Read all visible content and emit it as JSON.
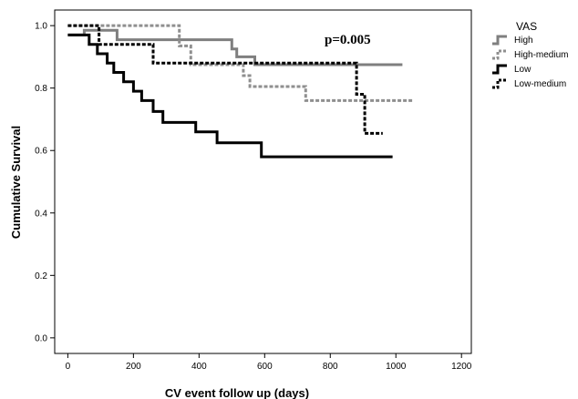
{
  "chart_data": {
    "type": "line",
    "step": true,
    "xlabel": "CV event follow up (days)",
    "ylabel": "Cumulative Survival",
    "xlim": [
      -40,
      1230
    ],
    "ylim": [
      -0.05,
      1.05
    ],
    "xticks": [
      0,
      200,
      400,
      600,
      800,
      1000,
      1200
    ],
    "yticks": [
      0.0,
      0.2,
      0.4,
      0.6,
      0.8,
      1.0
    ],
    "xtick_labels": [
      "0",
      "200",
      "400",
      "600",
      "800",
      "1000",
      "1200"
    ],
    "ytick_labels": [
      "0.0",
      "0.2",
      "0.4",
      "0.6",
      "0.8",
      "1.0"
    ],
    "annotation": "p=0.005",
    "legend": {
      "title": "VAS",
      "placement": "right"
    },
    "series": [
      {
        "name": "High",
        "color": "#7f7f7f",
        "style": "solid",
        "points": [
          [
            0,
            0.97
          ],
          [
            50,
            0.97
          ],
          [
            50,
            0.985
          ],
          [
            150,
            0.985
          ],
          [
            150,
            0.955
          ],
          [
            500,
            0.955
          ],
          [
            500,
            0.925
          ],
          [
            515,
            0.925
          ],
          [
            515,
            0.9
          ],
          [
            570,
            0.9
          ],
          [
            570,
            0.875
          ],
          [
            1020,
            0.875
          ]
        ]
      },
      {
        "name": "High-medium",
        "color": "#8f8f8f",
        "style": "dotted",
        "points": [
          [
            0,
            1.0
          ],
          [
            340,
            1.0
          ],
          [
            340,
            0.935
          ],
          [
            375,
            0.935
          ],
          [
            375,
            0.875
          ],
          [
            535,
            0.875
          ],
          [
            535,
            0.84
          ],
          [
            555,
            0.84
          ],
          [
            555,
            0.805
          ],
          [
            725,
            0.805
          ],
          [
            725,
            0.76
          ],
          [
            1050,
            0.76
          ]
        ]
      },
      {
        "name": "Low",
        "color": "#000000",
        "style": "solid",
        "points": [
          [
            0,
            0.97
          ],
          [
            65,
            0.97
          ],
          [
            65,
            0.94
          ],
          [
            90,
            0.94
          ],
          [
            90,
            0.91
          ],
          [
            120,
            0.91
          ],
          [
            120,
            0.88
          ],
          [
            140,
            0.88
          ],
          [
            140,
            0.85
          ],
          [
            170,
            0.85
          ],
          [
            170,
            0.82
          ],
          [
            200,
            0.82
          ],
          [
            200,
            0.79
          ],
          [
            225,
            0.79
          ],
          [
            225,
            0.76
          ],
          [
            260,
            0.76
          ],
          [
            260,
            0.725
          ],
          [
            290,
            0.725
          ],
          [
            290,
            0.69
          ],
          [
            390,
            0.69
          ],
          [
            390,
            0.66
          ],
          [
            455,
            0.66
          ],
          [
            455,
            0.625
          ],
          [
            590,
            0.625
          ],
          [
            590,
            0.58
          ],
          [
            990,
            0.58
          ]
        ]
      },
      {
        "name": "Low-medium",
        "color": "#000000",
        "style": "dotted",
        "points": [
          [
            0,
            1.0
          ],
          [
            95,
            1.0
          ],
          [
            95,
            0.94
          ],
          [
            260,
            0.94
          ],
          [
            260,
            0.88
          ],
          [
            880,
            0.88
          ],
          [
            880,
            0.78
          ],
          [
            905,
            0.78
          ],
          [
            905,
            0.655
          ],
          [
            960,
            0.655
          ]
        ]
      }
    ]
  }
}
